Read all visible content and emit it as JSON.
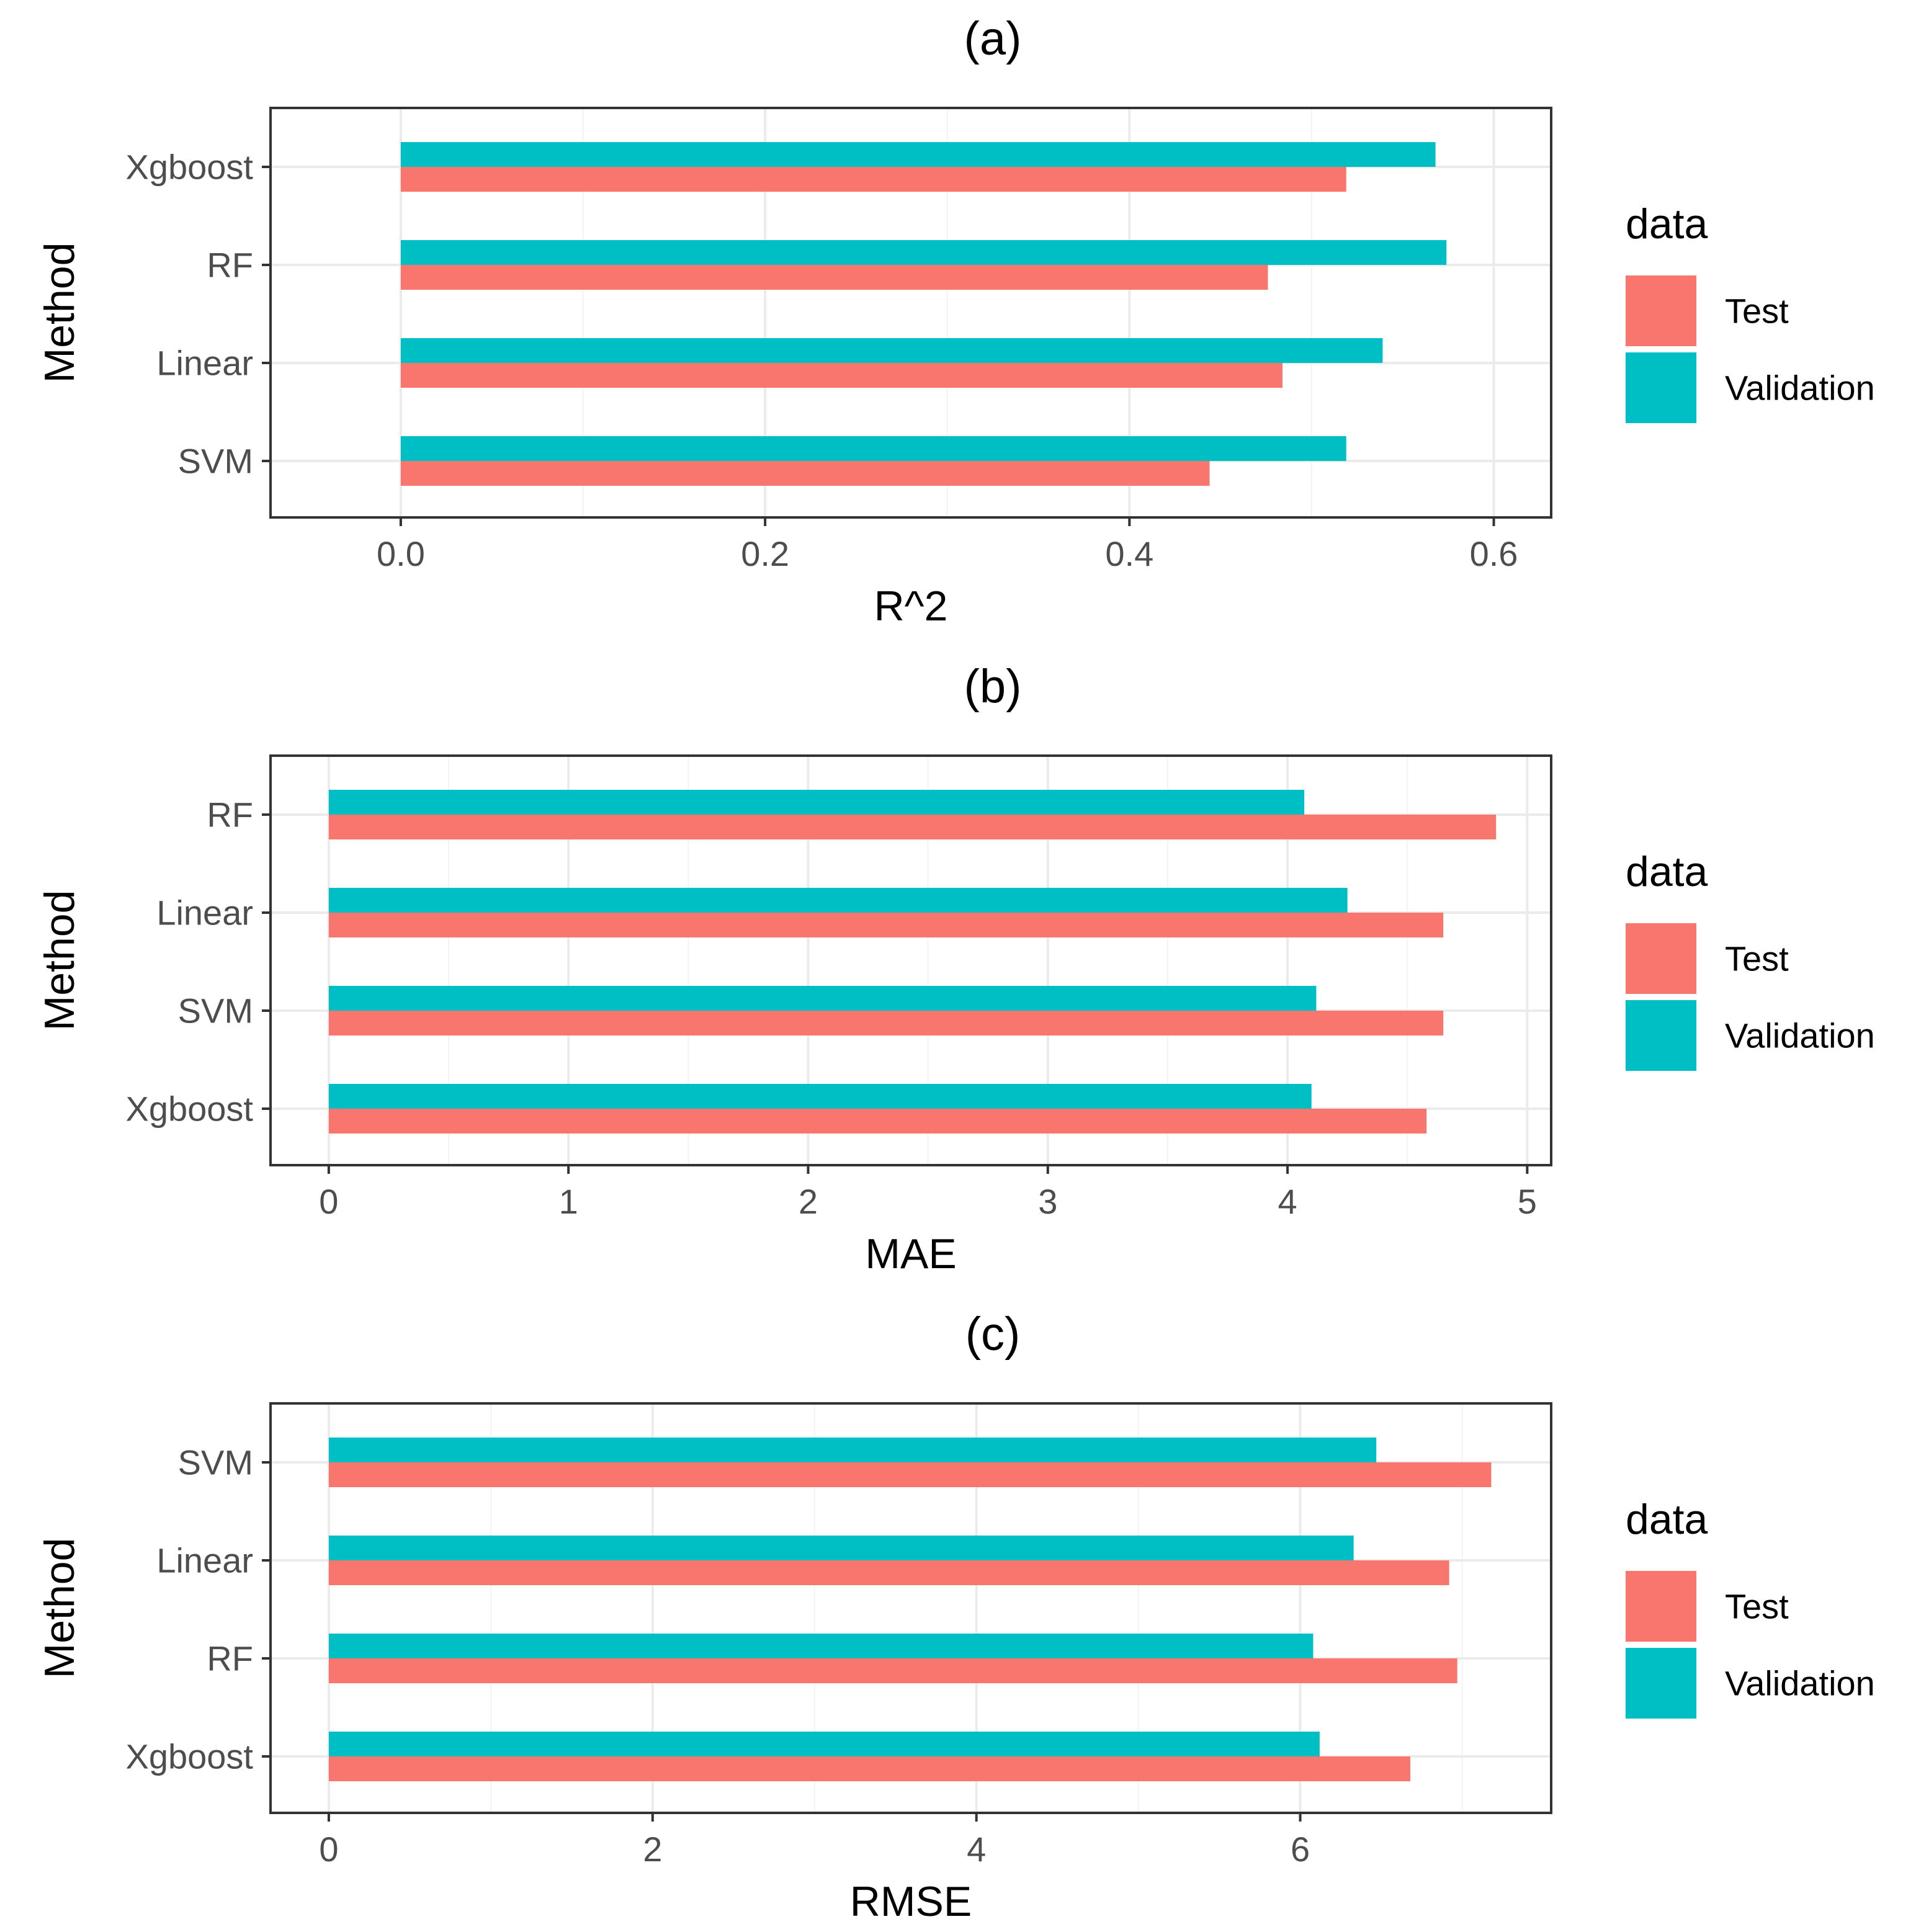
{
  "colors": {
    "test": "#F8766D",
    "validation": "#00BFC4"
  },
  "chart_data": [
    {
      "type": "bar",
      "orientation": "horizontal",
      "title": "(a)",
      "xlabel": "R^2",
      "ylabel": "Method",
      "xlim": [
        -0.0715,
        0.6315
      ],
      "xticks": [
        0.0,
        0.2,
        0.4,
        0.6
      ],
      "xtick_labels": [
        "0.0",
        "0.2",
        "0.4",
        "0.6"
      ],
      "x_minor": [
        0.1,
        0.3,
        0.5
      ],
      "categories": [
        "Xgboost",
        "RF",
        "Linear",
        "SVM"
      ],
      "series": [
        {
          "name": "Validation",
          "color": "#00BFC4",
          "values": [
            0.568,
            0.574,
            0.539,
            0.519
          ]
        },
        {
          "name": "Test",
          "color": "#F8766D",
          "values": [
            0.519,
            0.476,
            0.484,
            0.444
          ]
        }
      ],
      "legend": {
        "title": "data",
        "entries": [
          "Test",
          "Validation"
        ],
        "position": "right"
      }
    },
    {
      "type": "bar",
      "orientation": "horizontal",
      "title": "(b)",
      "xlabel": "MAE",
      "ylabel": "Method",
      "xlim": [
        -0.243,
        5.1
      ],
      "xticks": [
        0,
        1,
        2,
        3,
        4,
        5
      ],
      "xtick_labels": [
        "0",
        "1",
        "2",
        "3",
        "4",
        "5"
      ],
      "x_minor": [
        0.5,
        1.5,
        2.5,
        3.5,
        4.5
      ],
      "categories": [
        "RF",
        "Linear",
        "SVM",
        "Xgboost"
      ],
      "series": [
        {
          "name": "Validation",
          "color": "#00BFC4",
          "values": [
            4.07,
            4.25,
            4.12,
            4.1
          ]
        },
        {
          "name": "Test",
          "color": "#F8766D",
          "values": [
            4.87,
            4.65,
            4.65,
            4.58
          ]
        }
      ],
      "legend": {
        "title": "data",
        "entries": [
          "Test",
          "Validation"
        ],
        "position": "right"
      }
    },
    {
      "type": "bar",
      "orientation": "horizontal",
      "title": "(c)",
      "xlabel": "RMSE",
      "ylabel": "Method",
      "xlim": [
        -0.36,
        7.55
      ],
      "xticks": [
        0,
        2,
        4,
        6
      ],
      "xtick_labels": [
        "0",
        "2",
        "4",
        "6"
      ],
      "x_minor": [
        1,
        3,
        5,
        7
      ],
      "categories": [
        "SVM",
        "Linear",
        "RF",
        "Xgboost"
      ],
      "series": [
        {
          "name": "Validation",
          "color": "#00BFC4",
          "values": [
            6.47,
            6.33,
            6.08,
            6.12
          ]
        },
        {
          "name": "Test",
          "color": "#F8766D",
          "values": [
            7.18,
            6.92,
            6.97,
            6.68
          ]
        }
      ],
      "legend": {
        "title": "data",
        "entries": [
          "Test",
          "Validation"
        ],
        "position": "right"
      }
    }
  ]
}
